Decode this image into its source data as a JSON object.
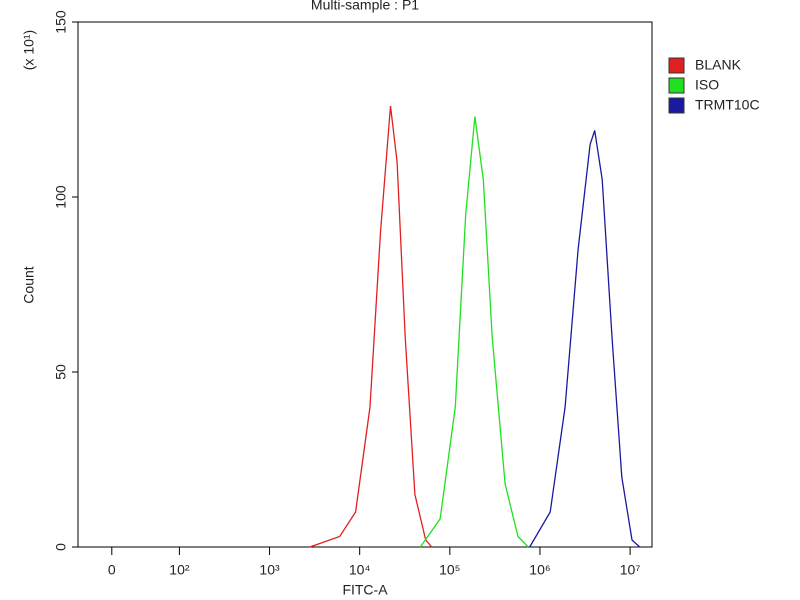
{
  "chart_data": {
    "type": "line",
    "title": "Multi-sample : P1",
    "x_label": "FITC-A",
    "y_label": "Count",
    "y_multiplier": "(x 10¹)",
    "xscale": "symlog",
    "linthresh": 100,
    "linscale": 0.75,
    "xlim": [
      -50,
      17500000
    ],
    "ylim": [
      0,
      150
    ],
    "xticks": [
      {
        "value": 0,
        "label": "0"
      },
      {
        "value": 100,
        "label": "10²"
      },
      {
        "value": 1000,
        "label": "10³"
      },
      {
        "value": 10000,
        "label": "10⁴"
      },
      {
        "value": 100000,
        "label": "10⁵"
      },
      {
        "value": 1000000,
        "label": "10⁶"
      },
      {
        "value": 10000000,
        "label": "10⁷"
      }
    ],
    "yticks": [
      0,
      50,
      100,
      150
    ],
    "legend": "right-top",
    "series": [
      {
        "name": "BLANK",
        "color": "#e02020",
        "x": [
          2800,
          6000,
          9000,
          13000,
          17000,
          22000,
          26000,
          32000,
          41000,
          54000,
          63000
        ],
        "values": [
          0,
          3,
          10,
          40,
          90,
          126,
          110,
          60,
          15,
          2,
          0
        ]
      },
      {
        "name": "ISO",
        "color": "#20e020",
        "x": [
          47000,
          78000,
          115000,
          150000,
          190000,
          235000,
          295000,
          410000,
          570000,
          740000
        ],
        "values": [
          0,
          8,
          40,
          95,
          123,
          105,
          60,
          18,
          3,
          0
        ]
      },
      {
        "name": "TRMT10C",
        "color": "#1a1aa0",
        "x": [
          770000,
          1300000,
          1900000,
          2650000,
          3600000,
          4050000,
          4900000,
          6300000,
          8100000,
          10500000,
          12800000
        ],
        "values": [
          0,
          10,
          40,
          85,
          115,
          119,
          105,
          60,
          20,
          2,
          0
        ]
      }
    ]
  }
}
